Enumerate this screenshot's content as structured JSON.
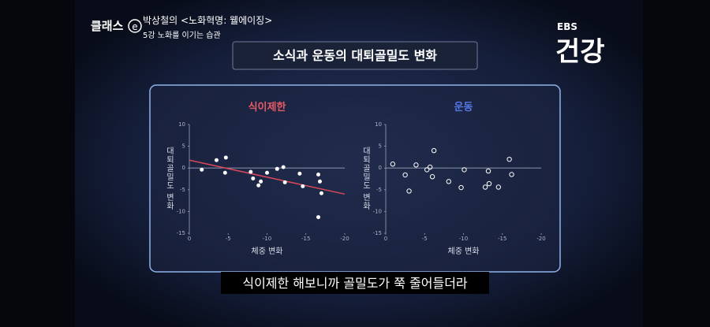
{
  "header": {
    "logo": "클래스",
    "logo_mark": "e",
    "program": "박상철의 <노화혁명: 웰에이징>",
    "episode": "5강 노화를 이기는 습관"
  },
  "channel": {
    "brand": "EBS",
    "name": "건강"
  },
  "title": "소식과 운동의 대퇴골밀도 변화",
  "caption": "식이제한 해보니까 골밀도가 쭉 줄어들더라",
  "chart_data": [
    {
      "type": "scatter",
      "title": "식이제한",
      "title_color": "#e65a64",
      "x_label": "체중 변화",
      "y_label": "대퇴골밀도 변화",
      "xlim": [
        0,
        -20
      ],
      "ylim": [
        -15,
        10
      ],
      "xticks": [
        0,
        -5,
        -10,
        -15,
        -20
      ],
      "yticks": [
        10,
        5,
        0,
        -5,
        -10,
        -15
      ],
      "color": "#ffffff",
      "marker": "filled",
      "x": [
        -1.6,
        -3.5,
        -4.7,
        -4.6,
        -7.9,
        -8.2,
        -8.9,
        -9.2,
        -10,
        -11.3,
        -12.1,
        -12.3,
        -14.2,
        -14.6,
        -16.6,
        -16.8,
        -17,
        -16.6
      ],
      "y": [
        -0.4,
        1.8,
        2.4,
        -1.1,
        -0.9,
        -2.4,
        -4,
        -3.1,
        -1.1,
        -0.2,
        0.2,
        -3.3,
        -1.3,
        -4.2,
        -1.5,
        -3.1,
        -5.8,
        -11.3
      ],
      "trendline": {
        "x": [
          0,
          -20
        ],
        "y": [
          1.8,
          -6
        ],
        "color": "#d9475a"
      }
    },
    {
      "type": "scatter",
      "title": "운동",
      "title_color": "#5577e8",
      "x_label": "체중 변화",
      "y_label": "대퇴골밀도 변화",
      "xlim": [
        0,
        -20
      ],
      "ylim": [
        -15,
        10
      ],
      "xticks": [
        0,
        -5,
        -10,
        -15,
        -20
      ],
      "yticks": [
        10,
        5,
        0,
        -5,
        -10,
        -15
      ],
      "color": "#ffffff",
      "marker": "hollow",
      "x": [
        -0.9,
        -2.5,
        -3,
        -3.9,
        -5.3,
        -5.7,
        -6,
        -6.2,
        -8.1,
        -9.7,
        -10.1,
        -12.8,
        -13.2,
        -13.3,
        -14.5,
        -15.9,
        -16.2
      ],
      "y": [
        0.9,
        -1.6,
        -5.3,
        0.7,
        -0.4,
        0.2,
        -2,
        4,
        -3.1,
        -4.5,
        -0.4,
        -4.4,
        -0.7,
        -3.6,
        -4.4,
        2,
        -1.5
      ]
    }
  ]
}
